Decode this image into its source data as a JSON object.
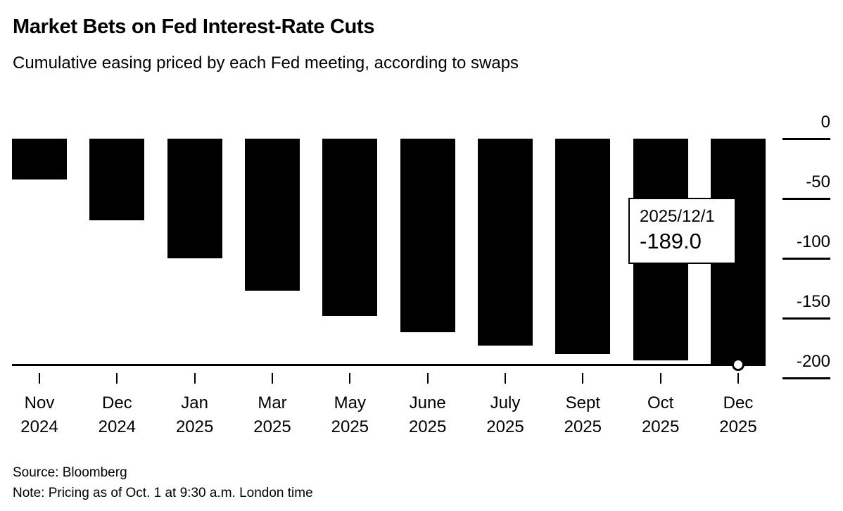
{
  "header": {
    "title": "Market Bets on Fed Interest-Rate Cuts",
    "subtitle": "Cumulative easing priced by each Fed meeting, according to swaps"
  },
  "chart_data": {
    "type": "bar",
    "title": "Market Bets on Fed Interest-Rate Cuts",
    "subtitle": "Cumulative easing priced by each Fed meeting, according to swaps",
    "categories": [
      {
        "month": "Nov",
        "year": "2024"
      },
      {
        "month": "Dec",
        "year": "2024"
      },
      {
        "month": "Jan",
        "year": "2025"
      },
      {
        "month": "Mar",
        "year": "2025"
      },
      {
        "month": "May",
        "year": "2025"
      },
      {
        "month": "June",
        "year": "2025"
      },
      {
        "month": "July",
        "year": "2025"
      },
      {
        "month": "Sept",
        "year": "2025"
      },
      {
        "month": "Oct",
        "year": "2025"
      },
      {
        "month": "Dec",
        "year": "2025"
      }
    ],
    "values": [
      -34,
      -68,
      -100,
      -127,
      -148,
      -162,
      -173,
      -180,
      -185,
      -189
    ],
    "xlabel": "",
    "ylabel": "",
    "ylim": [
      -200,
      0
    ],
    "y_ticks": [
      0,
      -50,
      -100,
      -150,
      -200
    ],
    "y_tick_labels": [
      "0",
      "-50",
      "-100",
      "-150",
      "-200"
    ],
    "y_axis_position": "right",
    "grid": false,
    "legend": null,
    "bar_color": "#000000",
    "last_value_line": -189.0,
    "annotation": {
      "date": "2025/12/1",
      "value": "-189.0"
    }
  },
  "footer": {
    "source": "Source: Bloomberg",
    "note": "Note: Pricing as of Oct. 1 at 9:30 a.m. London time"
  }
}
